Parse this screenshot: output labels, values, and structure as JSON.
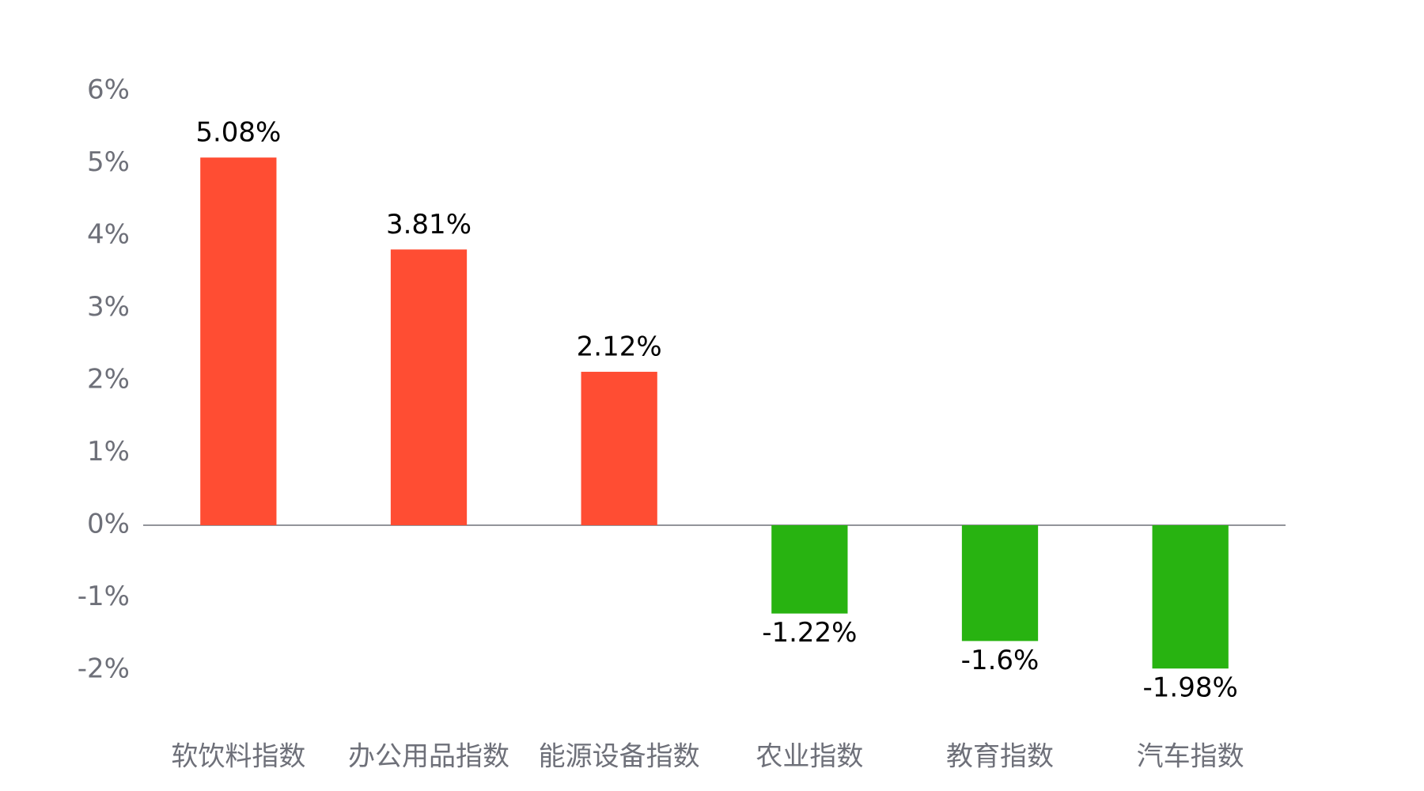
{
  "chart_data": {
    "type": "bar",
    "categories": [
      "软饮料指数",
      "办公用品指数",
      "能源设备指数",
      "农业指数",
      "教育指数",
      "汽车指数"
    ],
    "values": [
      5.08,
      3.81,
      2.12,
      -1.22,
      -1.6,
      -1.98
    ],
    "value_labels": [
      "5.08%",
      "3.81%",
      "2.12%",
      "-1.22%",
      "-1.6%",
      "-1.98%"
    ],
    "colors": [
      "#ff4d33",
      "#ff4d33",
      "#ff4d33",
      "#28b311",
      "#28b311",
      "#28b311"
    ],
    "ylim": [
      -2,
      6
    ],
    "yticks": [
      {
        "value": -2,
        "label": "-2%"
      },
      {
        "value": -1,
        "label": "-1%"
      },
      {
        "value": 0,
        "label": "0%"
      },
      {
        "value": 1,
        "label": "1%"
      },
      {
        "value": 2,
        "label": "2%"
      },
      {
        "value": 3,
        "label": "3%"
      },
      {
        "value": 4,
        "label": "4%"
      },
      {
        "value": 5,
        "label": "5%"
      },
      {
        "value": 6,
        "label": "6%"
      }
    ],
    "grid": false
  }
}
